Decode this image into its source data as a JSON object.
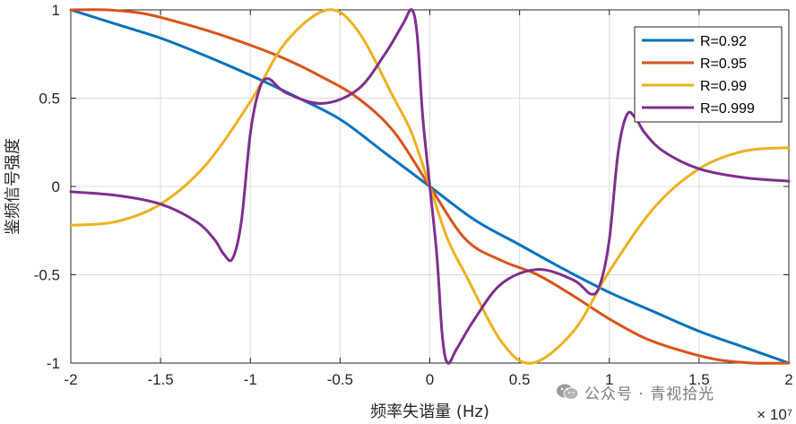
{
  "chart_data": {
    "type": "line",
    "title": "",
    "xlabel": "频率失谐量 (Hz)",
    "ylabel": "鉴频信号强度",
    "x_exponent": "× 10⁷",
    "xlim": [
      -2,
      2
    ],
    "ylim": [
      -1,
      1
    ],
    "x_ticks": [
      "-2",
      "-1.5",
      "-1",
      "-0.5",
      "0",
      "0.5",
      "1",
      "1.5",
      "2"
    ],
    "y_ticks": [
      "1",
      "0.5",
      "0",
      "-0.5",
      "-1"
    ],
    "grid": true,
    "legend_position": "top-right",
    "series": [
      {
        "name": "R=0.92",
        "color": "#0072BD",
        "x": [
          -2,
          -1.75,
          -1.5,
          -1.25,
          -1,
          -0.75,
          -0.5,
          -0.25,
          0,
          0.25,
          0.5,
          0.75,
          1,
          1.25,
          1.5,
          1.75,
          2
        ],
        "y": [
          1,
          0.92,
          0.84,
          0.74,
          0.63,
          0.51,
          0.38,
          0.19,
          0,
          -0.19,
          -0.33,
          -0.47,
          -0.6,
          -0.71,
          -0.82,
          -0.91,
          -1
        ]
      },
      {
        "name": "R=0.95",
        "color": "#D95319",
        "x": [
          -2,
          -1.8,
          -1.6,
          -1.4,
          -1.2,
          -1.0,
          -0.8,
          -0.6,
          -0.4,
          -0.2,
          0,
          0.2,
          0.4,
          0.6,
          0.8,
          1.0,
          1.2,
          1.4,
          1.6,
          1.8,
          2
        ],
        "y": [
          1,
          1,
          0.98,
          0.93,
          0.87,
          0.8,
          0.72,
          0.62,
          0.5,
          0.31,
          0,
          -0.3,
          -0.42,
          -0.5,
          -0.62,
          -0.75,
          -0.86,
          -0.93,
          -0.98,
          -1,
          -1
        ]
      },
      {
        "name": "R=0.99",
        "color": "#EDB120",
        "x": [
          -2,
          -1.75,
          -1.5,
          -1.25,
          -1,
          -0.8,
          -0.57,
          -0.4,
          -0.2,
          -0.1,
          0,
          0.1,
          0.2,
          0.4,
          0.57,
          0.8,
          1,
          1.25,
          1.5,
          1.75,
          2
        ],
        "y": [
          -0.22,
          -0.2,
          -0.1,
          0.12,
          0.48,
          0.82,
          1,
          0.88,
          0.5,
          0.3,
          0,
          -0.3,
          -0.5,
          -0.88,
          -1,
          -0.82,
          -0.48,
          -0.12,
          0.1,
          0.2,
          0.22
        ]
      },
      {
        "name": "R=0.999",
        "color": "#7E2F8E",
        "x": [
          -2,
          -1.75,
          -1.5,
          -1.3,
          -1.2,
          -1.15,
          -1.1,
          -1.05,
          -1.0,
          -0.95,
          -0.9,
          -0.8,
          -0.6,
          -0.4,
          -0.25,
          -0.15,
          -0.1,
          -0.07,
          -0.04,
          0,
          0.04,
          0.07,
          0.1,
          0.15,
          0.25,
          0.4,
          0.6,
          0.8,
          0.9,
          0.95,
          1.0,
          1.05,
          1.1,
          1.15,
          1.2,
          1.3,
          1.5,
          1.75,
          2
        ],
        "y": [
          -0.03,
          -0.05,
          -0.1,
          -0.2,
          -0.3,
          -0.38,
          -0.41,
          -0.2,
          0.3,
          0.55,
          0.61,
          0.53,
          0.47,
          0.55,
          0.75,
          0.92,
          1,
          0.85,
          0.4,
          0,
          -0.4,
          -0.85,
          -1,
          -0.92,
          -0.75,
          -0.55,
          -0.47,
          -0.53,
          -0.61,
          -0.55,
          -0.3,
          0.2,
          0.41,
          0.38,
          0.3,
          0.2,
          0.1,
          0.05,
          0.03
        ]
      }
    ]
  },
  "watermark": {
    "text": "公众号 · 青视拾光",
    "icon": "wechat-icon"
  }
}
